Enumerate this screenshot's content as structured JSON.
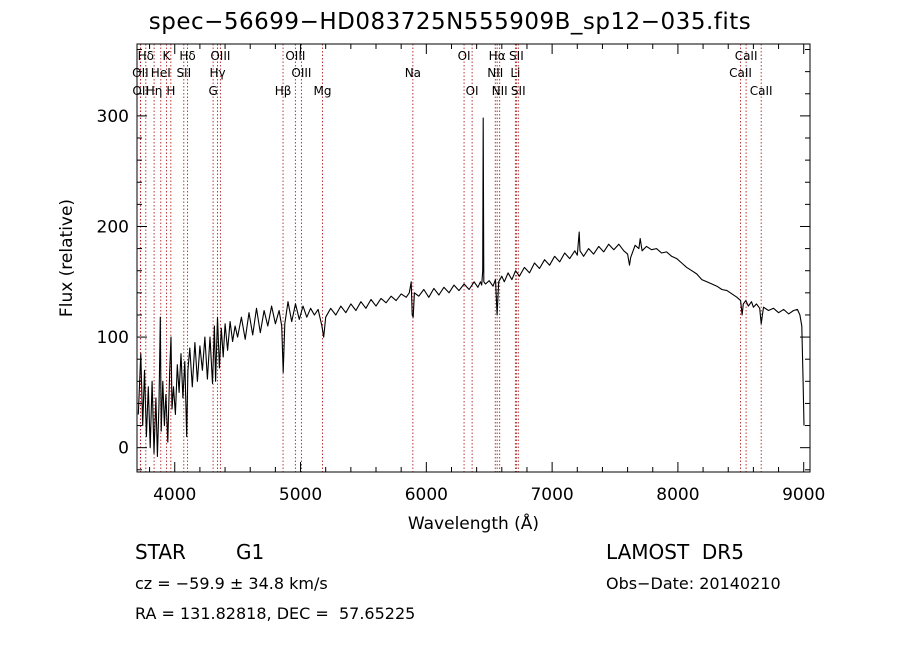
{
  "chart_data": {
    "type": "line",
    "title": "spec−56699−HD083725N555909B_sp12−035.fits",
    "xlabel": "Wavelength (Å)",
    "ylabel": "Flux (relative)",
    "xlim": [
      3700,
      9050
    ],
    "ylim": [
      -22,
      365
    ],
    "x_ticks": [
      4000,
      5000,
      6000,
      7000,
      8000,
      9000
    ],
    "y_ticks": [
      0,
      100,
      200,
      300
    ],
    "grid": false,
    "series": [
      {
        "color": "#000000",
        "points": [
          [
            3710,
            30
          ],
          [
            3730,
            85
          ],
          [
            3745,
            20
          ],
          [
            3760,
            70
          ],
          [
            3775,
            10
          ],
          [
            3790,
            55
          ],
          [
            3805,
            0
          ],
          [
            3820,
            60
          ],
          [
            3835,
            -5
          ],
          [
            3850,
            45
          ],
          [
            3862,
            -8
          ],
          [
            3875,
            40
          ],
          [
            3885,
            118
          ],
          [
            3892,
            15
          ],
          [
            3905,
            60
          ],
          [
            3918,
            20
          ],
          [
            3930,
            48
          ],
          [
            3945,
            5
          ],
          [
            3960,
            70
          ],
          [
            3970,
            100
          ],
          [
            3978,
            35
          ],
          [
            3990,
            55
          ],
          [
            4005,
            30
          ],
          [
            4020,
            75
          ],
          [
            4035,
            50
          ],
          [
            4050,
            85
          ],
          [
            4065,
            45
          ],
          [
            4080,
            78
          ],
          [
            4095,
            10
          ],
          [
            4105,
            70
          ],
          [
            4120,
            90
          ],
          [
            4140,
            55
          ],
          [
            4160,
            95
          ],
          [
            4180,
            60
          ],
          [
            4200,
            92
          ],
          [
            4220,
            70
          ],
          [
            4240,
            100
          ],
          [
            4260,
            62
          ],
          [
            4280,
            100
          ],
          [
            4300,
            58
          ],
          [
            4315,
            110
          ],
          [
            4325,
            60
          ],
          [
            4340,
            118
          ],
          [
            4355,
            72
          ],
          [
            4370,
            108
          ],
          [
            4385,
            82
          ],
          [
            4400,
            112
          ],
          [
            4420,
            88
          ],
          [
            4440,
            114
          ],
          [
            4460,
            96
          ],
          [
            4480,
            110
          ],
          [
            4500,
            100
          ],
          [
            4530,
            118
          ],
          [
            4560,
            98
          ],
          [
            4590,
            122
          ],
          [
            4620,
            102
          ],
          [
            4650,
            126
          ],
          [
            4680,
            104
          ],
          [
            4710,
            124
          ],
          [
            4740,
            110
          ],
          [
            4770,
            128
          ],
          [
            4800,
            112
          ],
          [
            4830,
            124
          ],
          [
            4850,
            110
          ],
          [
            4862,
            68
          ],
          [
            4875,
            112
          ],
          [
            4900,
            132
          ],
          [
            4930,
            114
          ],
          [
            4960,
            130
          ],
          [
            4990,
            116
          ],
          [
            5020,
            128
          ],
          [
            5050,
            118
          ],
          [
            5080,
            126
          ],
          [
            5110,
            120
          ],
          [
            5140,
            125
          ],
          [
            5170,
            110
          ],
          [
            5184,
            100
          ],
          [
            5200,
            118
          ],
          [
            5240,
            126
          ],
          [
            5280,
            120
          ],
          [
            5320,
            128
          ],
          [
            5360,
            122
          ],
          [
            5400,
            130
          ],
          [
            5440,
            124
          ],
          [
            5480,
            132
          ],
          [
            5520,
            126
          ],
          [
            5560,
            134
          ],
          [
            5600,
            128
          ],
          [
            5640,
            135
          ],
          [
            5680,
            131
          ],
          [
            5720,
            137
          ],
          [
            5760,
            133
          ],
          [
            5800,
            139
          ],
          [
            5840,
            136
          ],
          [
            5865,
            140
          ],
          [
            5880,
            150
          ],
          [
            5888,
            120
          ],
          [
            5896,
            118
          ],
          [
            5905,
            140
          ],
          [
            5940,
            137
          ],
          [
            5980,
            143
          ],
          [
            6020,
            136
          ],
          [
            6060,
            144
          ],
          [
            6100,
            138
          ],
          [
            6140,
            145
          ],
          [
            6180,
            140
          ],
          [
            6220,
            147
          ],
          [
            6260,
            142
          ],
          [
            6300,
            148
          ],
          [
            6340,
            143
          ],
          [
            6380,
            150
          ],
          [
            6410,
            145
          ],
          [
            6430,
            150
          ],
          [
            6440,
            147
          ],
          [
            6448,
            160
          ],
          [
            6452,
            298
          ],
          [
            6457,
            150
          ],
          [
            6470,
            148
          ],
          [
            6500,
            151
          ],
          [
            6530,
            146
          ],
          [
            6550,
            152
          ],
          [
            6563,
            120
          ],
          [
            6575,
            150
          ],
          [
            6600,
            155
          ],
          [
            6620,
            150
          ],
          [
            6650,
            158
          ],
          [
            6680,
            152
          ],
          [
            6710,
            160
          ],
          [
            6740,
            155
          ],
          [
            6780,
            163
          ],
          [
            6820,
            158
          ],
          [
            6860,
            167
          ],
          [
            6900,
            162
          ],
          [
            6940,
            170
          ],
          [
            6980,
            165
          ],
          [
            7020,
            173
          ],
          [
            7060,
            168
          ],
          [
            7100,
            176
          ],
          [
            7140,
            171
          ],
          [
            7180,
            178
          ],
          [
            7200,
            174
          ],
          [
            7215,
            195
          ],
          [
            7222,
            178
          ],
          [
            7250,
            173
          ],
          [
            7290,
            180
          ],
          [
            7330,
            175
          ],
          [
            7370,
            182
          ],
          [
            7410,
            177
          ],
          [
            7450,
            184
          ],
          [
            7490,
            179
          ],
          [
            7530,
            184
          ],
          [
            7570,
            178
          ],
          [
            7600,
            175
          ],
          [
            7615,
            165
          ],
          [
            7625,
            172
          ],
          [
            7660,
            183
          ],
          [
            7690,
            180
          ],
          [
            7700,
            189
          ],
          [
            7715,
            178
          ],
          [
            7750,
            182
          ],
          [
            7790,
            179
          ],
          [
            7830,
            180
          ],
          [
            7870,
            176
          ],
          [
            7910,
            177
          ],
          [
            7950,
            173
          ],
          [
            7990,
            171
          ],
          [
            8030,
            167
          ],
          [
            8070,
            163
          ],
          [
            8110,
            160
          ],
          [
            8150,
            157
          ],
          [
            8190,
            152
          ],
          [
            8230,
            150
          ],
          [
            8270,
            148
          ],
          [
            8310,
            146
          ],
          [
            8350,
            143
          ],
          [
            8390,
            142
          ],
          [
            8430,
            139
          ],
          [
            8470,
            136
          ],
          [
            8498,
            133
          ],
          [
            8510,
            120
          ],
          [
            8520,
            130
          ],
          [
            8540,
            133
          ],
          [
            8560,
            128
          ],
          [
            8585,
            132
          ],
          [
            8600,
            127
          ],
          [
            8625,
            130
          ],
          [
            8650,
            126
          ],
          [
            8662,
            112
          ],
          [
            8680,
            127
          ],
          [
            8720,
            124
          ],
          [
            8760,
            126
          ],
          [
            8800,
            122
          ],
          [
            8840,
            125
          ],
          [
            8880,
            121
          ],
          [
            8920,
            124
          ],
          [
            8950,
            125
          ],
          [
            8970,
            120
          ],
          [
            8985,
            110
          ],
          [
            8995,
            60
          ],
          [
            9002,
            20
          ]
        ]
      }
    ],
    "lines": [
      {
        "label": "Hδ",
        "x": 3770,
        "row": 0
      },
      {
        "label": "OII",
        "x": 3727,
        "row": 1
      },
      {
        "label": "OII",
        "x": 3729,
        "row": 2
      },
      {
        "label": "K",
        "x": 3934,
        "row": 0
      },
      {
        "label": "HeI",
        "x": 3889,
        "row": 1
      },
      {
        "label": "Hη",
        "x": 3836,
        "row": 2
      },
      {
        "label": "H",
        "x": 3969,
        "row": 2
      },
      {
        "label": "Hδ",
        "x": 4102,
        "row": 0
      },
      {
        "label": "SII",
        "x": 4072,
        "row": 1
      },
      {
        "label": "OIII",
        "x": 4363,
        "row": 0
      },
      {
        "label": "Hγ",
        "x": 4340,
        "row": 1
      },
      {
        "label": "G",
        "x": 4305,
        "row": 2
      },
      {
        "label": "Hβ",
        "x": 4861,
        "row": 2
      },
      {
        "label": "OIII",
        "x": 4959,
        "row": 0
      },
      {
        "label": "OIII",
        "x": 5007,
        "row": 1
      },
      {
        "label": "Mg",
        "x": 5175,
        "row": 2
      },
      {
        "label": "Na",
        "x": 5893,
        "row": 1
      },
      {
        "label": "OI",
        "x": 6300,
        "row": 0
      },
      {
        "label": "OI",
        "x": 6364,
        "row": 2
      },
      {
        "label": "Hα",
        "x": 6563,
        "row": 0
      },
      {
        "label": "NII",
        "x": 6548,
        "row": 1
      },
      {
        "label": "NII",
        "x": 6583,
        "row": 2
      },
      {
        "label": "SII",
        "x": 6716,
        "row": 0
      },
      {
        "label": "Li",
        "x": 6708,
        "row": 1
      },
      {
        "label": "SII",
        "x": 6731,
        "row": 2
      },
      {
        "label": "CaII",
        "x": 8542,
        "row": 0
      },
      {
        "label": "CaII",
        "x": 8498,
        "row": 1
      },
      {
        "label": "CaII",
        "x": 8662,
        "row": 2
      }
    ]
  },
  "info": {
    "object_class": "STAR",
    "subclass": "G1",
    "survey": "LAMOST  DR5",
    "cz": "cz = −59.9 ± 34.8 km/s",
    "obs_date": "Obs−Date: 20140210",
    "radec": "RA = 131.82818, DEC =  57.65225"
  },
  "colors": {
    "spectrum": "#000000",
    "line_markers": "#b22222",
    "axes": "#000000",
    "background": "#ffffff"
  }
}
